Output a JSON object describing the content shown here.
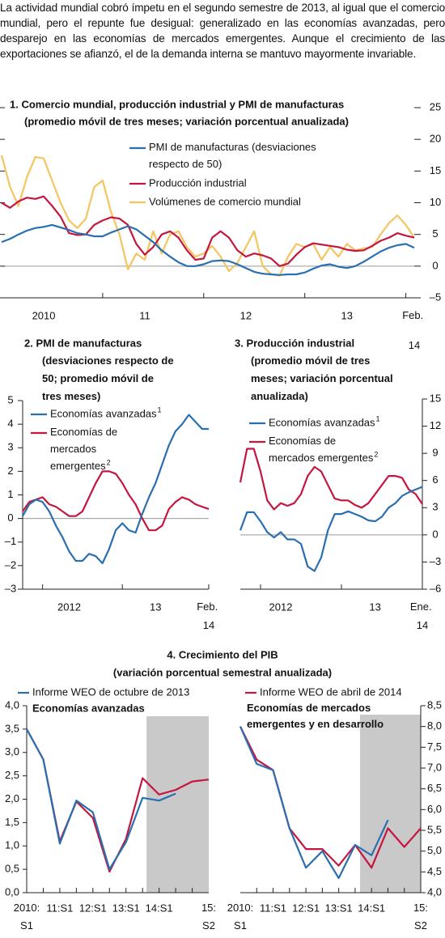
{
  "text": {
    "paragraph": "La actividad mundial cobró ímpetu en el segundo semestre de 2013, al igual que el comercio mundial, pero el repunte fue desigual: generalizado en las economías avanzadas, pero desparejo en las economías de mercados emergentes. Aunque el crecimiento de las exportaciones se afianzó, el de la demanda interna se mantuvo mayormente invariable."
  },
  "chart_data": [
    {
      "type": "line",
      "title": "1. Comercio mundial, producción industrial y PMI de manufacturas",
      "subtitle": "(promedio móvil de tres meses; variación porcentual anualizada)",
      "categories": [
        null,
        null,
        null,
        null,
        null,
        "2010",
        null,
        null,
        null,
        null,
        null,
        null,
        null,
        null,
        null,
        null,
        null,
        "11",
        null,
        null,
        null,
        null,
        null,
        null,
        null,
        null,
        null,
        null,
        null,
        "12",
        null,
        null,
        null,
        null,
        null,
        null,
        null,
        null,
        null,
        null,
        null,
        "13",
        null,
        null,
        null,
        null,
        null,
        null,
        null,
        "Feb. 14"
      ],
      "series": [
        {
          "name": "PMI de manufacturas (desviaciones respecto de 50)",
          "color": "#2a6fb0",
          "values": [
            3.8,
            4.3,
            5.0,
            5.6,
            6.0,
            6.2,
            6.5,
            6.1,
            5.7,
            5.2,
            5.0,
            4.7,
            4.7,
            5.3,
            5.8,
            6.3,
            5.8,
            4.8,
            3.8,
            2.5,
            1.5,
            0.6,
            0,
            0,
            0.3,
            0.8,
            0.9,
            0.8,
            0.3,
            -0.3,
            -0.9,
            -1.2,
            -1.3,
            -1.4,
            -1.3,
            -1.3,
            -1.0,
            -0.4,
            0.1,
            0.3,
            -0.1,
            -0.3,
            0,
            0.7,
            1.5,
            2.3,
            2.9,
            3.3,
            3.5,
            2.9
          ]
        },
        {
          "name": "Producción industrial",
          "color": "#c4163f",
          "values": [
            10.0,
            9.2,
            10.2,
            10.8,
            10.6,
            11.0,
            9.5,
            7.8,
            5.2,
            4.9,
            5.0,
            6.5,
            7.2,
            7.7,
            7.5,
            6.5,
            3.5,
            1.8,
            3.0,
            5.0,
            5.5,
            4.5,
            2.5,
            1.0,
            1.2,
            4.5,
            5.5,
            4.5,
            2.5,
            1.5,
            2.0,
            1.7,
            1.2,
            0,
            0.4,
            1.8,
            3.0,
            3.6,
            3.4,
            3.2,
            3.0,
            2.6,
            2.4,
            2.5,
            3.2,
            4.0,
            4.5,
            5.2,
            4.8,
            4.5
          ]
        },
        {
          "name": "Volúmenes de comercio mundial",
          "color": "#f4c560",
          "values": [
            17.5,
            12.5,
            9.5,
            14.0,
            17.2,
            17.0,
            13.5,
            10.0,
            7.2,
            6.0,
            7.5,
            12.5,
            13.5,
            8.5,
            5.0,
            -0.5,
            2.0,
            1.0,
            5.5,
            2.0,
            5.0,
            5.5,
            3.0,
            1.5,
            2.0,
            3.2,
            1.5,
            -0.8,
            0.5,
            3.0,
            5.5,
            0,
            -1.3,
            -1.5,
            1.5,
            3.5,
            3.0,
            3.5,
            1.0,
            3.0,
            1.5,
            3.5,
            2.5,
            2.8,
            3.0,
            5.0,
            6.8,
            8.0,
            6.5,
            4.5
          ]
        }
      ],
      "ylim": [
        -5,
        25
      ],
      "yticks": [
        25,
        20,
        15,
        10,
        5,
        0,
        {
          "value": -5,
          "label": "–5"
        }
      ]
    },
    {
      "type": "line",
      "title": "2. PMI de manufacturas",
      "subtitle": "(desviaciones respecto de 50; promedio móvil de tres meses)",
      "categories": [
        null,
        null,
        null,
        null,
        null,
        null,
        null,
        "2012",
        null,
        null,
        null,
        null,
        null,
        null,
        null,
        null,
        null,
        null,
        null,
        null,
        "13",
        null,
        null,
        null,
        null,
        null,
        null,
        null,
        "Feb. 14"
      ],
      "series": [
        {
          "name": "Economías avanzadas",
          "note": "1",
          "color": "#2a6fb0",
          "values": [
            0.1,
            0.6,
            0.8,
            0.7,
            0.3,
            -0.3,
            -0.8,
            -1.4,
            -1.8,
            -1.8,
            -1.5,
            -1.6,
            -1.9,
            -1.3,
            -0.5,
            -0.2,
            -0.5,
            -0.6,
            0.2,
            0.9,
            1.5,
            2.3,
            3.1,
            3.7,
            4.0,
            4.4,
            4.1,
            3.8,
            3.8
          ]
        },
        {
          "name": "Economías de mercados emergentes",
          "note": "2",
          "color": "#c4163f",
          "values": [
            0.3,
            0.7,
            0.8,
            0.9,
            0.6,
            0.5,
            0.3,
            0.1,
            0.1,
            0.3,
            0.9,
            1.5,
            2.0,
            2.0,
            1.9,
            1.5,
            1.0,
            0.6,
            0,
            -0.5,
            -0.5,
            -0.3,
            0.4,
            0.7,
            0.9,
            0.8,
            0.6,
            0.5,
            0.4
          ]
        }
      ],
      "ylim": [
        -3,
        5
      ],
      "yticks": [
        5,
        4,
        3,
        2,
        1,
        0,
        {
          "value": -1,
          "label": "–1"
        },
        {
          "value": -2,
          "label": "–2"
        },
        {
          "value": -3,
          "label": "–3"
        }
      ]
    },
    {
      "type": "line",
      "title": "3. Producción industrial",
      "subtitle": "(promedio móvil de tres meses; variación porcentual anualizada)",
      "categories": [
        null,
        null,
        null,
        null,
        null,
        null,
        "2012",
        null,
        null,
        null,
        null,
        null,
        null,
        null,
        null,
        null,
        null,
        null,
        null,
        null,
        "13",
        null,
        null,
        null,
        null,
        null,
        null,
        "Ene. 14"
      ],
      "series": [
        {
          "name": "Economías avanzadas",
          "note": "1",
          "color": "#2a6fb0",
          "values": [
            0.5,
            2.5,
            2.5,
            1.5,
            0.3,
            -0.3,
            0.3,
            -0.5,
            -0.5,
            -1.0,
            -3.5,
            -4.0,
            -2.5,
            0.5,
            2.3,
            2.3,
            2.6,
            2.3,
            2.0,
            1.6,
            1.5,
            2.0,
            3.0,
            3.5,
            4.3,
            4.7,
            5.0,
            5.3
          ]
        },
        {
          "name": "Economías de mercados emergentes",
          "note": "2",
          "color": "#c4163f",
          "values": [
            5.8,
            9.5,
            9.5,
            7.0,
            3.8,
            2.8,
            3.5,
            3.2,
            3.5,
            4.5,
            6.5,
            7.5,
            7.0,
            5.5,
            4.0,
            3.8,
            3.8,
            3.3,
            3.0,
            3.5,
            4.5,
            5.5,
            6.5,
            6.5,
            6.3,
            5.0,
            4.5,
            3.4
          ]
        }
      ],
      "ylim": [
        -6,
        15
      ],
      "yticks": [
        15,
        12,
        9,
        6,
        3,
        0,
        {
          "value": -3,
          "label": "–3"
        },
        {
          "value": -6,
          "label": "–6"
        }
      ]
    },
    {
      "type": "line",
      "title": "4. Crecimiento del PIB",
      "subtitle": "(variación porcentual semestral anualizada)",
      "panel_label": "Economías avanzadas",
      "categories": [
        "2010:S1",
        null,
        "11:S1",
        null,
        "12:S1",
        null,
        "13:S1",
        null,
        "14:S1",
        null,
        null,
        "15:S2"
      ],
      "series": [
        {
          "name": "Informe WEO de octubre de 2013",
          "color": "#2a6fb0",
          "values": [
            3.5,
            2.85,
            1.05,
            1.97,
            1.72,
            0.5,
            1.08,
            2.03,
            1.97,
            2.12,
            null,
            null
          ]
        },
        {
          "color": "#c4163f",
          "values": [
            3.5,
            2.85,
            1.1,
            1.95,
            1.6,
            0.45,
            1.15,
            2.45,
            2.1,
            2.2,
            2.38,
            2.42
          ]
        }
      ],
      "ylim": [
        0,
        4
      ],
      "yticks": [
        {
          "value": 4,
          "label": "4,0"
        },
        {
          "value": 3.5,
          "label": "3,5"
        },
        {
          "value": 3,
          "label": "3,0"
        },
        {
          "value": 2.5,
          "label": "2,5"
        },
        {
          "value": 2,
          "label": "2,0"
        },
        {
          "value": 1.5,
          "label": "1,5"
        },
        {
          "value": 1,
          "label": "1,0"
        },
        {
          "value": 0.5,
          "label": "0,5"
        },
        {
          "value": 0,
          "label": "0,0"
        }
      ]
    },
    {
      "type": "line",
      "panel_label": "Economías de mercados emergentes y en desarrollo",
      "categories": [
        "2010:S1",
        null,
        "11:S1",
        null,
        "12:S1",
        null,
        "13:S1",
        null,
        "14:S1",
        null,
        null,
        "15:S2"
      ],
      "series": [
        {
          "color": "#2a6fb0",
          "values": [
            8.0,
            7.1,
            6.95,
            5.55,
            4.6,
            5.0,
            4.35,
            5.15,
            4.9,
            5.75,
            null,
            null
          ]
        },
        {
          "name": "Informe WEO de abril de 2014",
          "color": "#c4163f",
          "values": [
            8.0,
            7.2,
            6.95,
            5.55,
            5.05,
            5.05,
            4.65,
            5.15,
            4.6,
            5.55,
            5.1,
            5.55
          ]
        }
      ],
      "ylim": [
        4,
        8.5
      ],
      "yticks": [
        {
          "value": 8.5,
          "label": "8,5"
        },
        {
          "value": 8,
          "label": "8,0"
        },
        {
          "value": 7.5,
          "label": "7,5"
        },
        {
          "value": 7,
          "label": "7,0"
        },
        {
          "value": 6.5,
          "label": "6,5"
        },
        {
          "value": 6,
          "label": "6,0"
        },
        {
          "value": 5.5,
          "label": "5,5"
        },
        {
          "value": 5,
          "label": "5,0"
        },
        {
          "value": 4.5,
          "label": "4,5"
        },
        {
          "value": 4,
          "label": "4,0"
        }
      ]
    }
  ]
}
